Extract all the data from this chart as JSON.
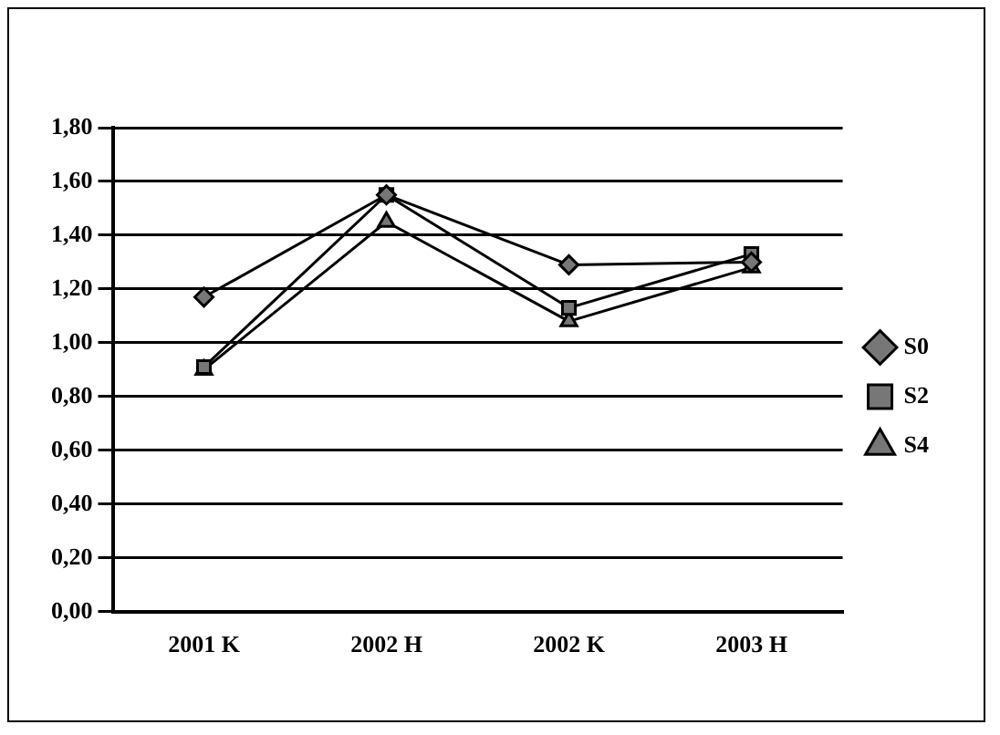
{
  "chart_data": {
    "type": "line",
    "categories": [
      "2001 K",
      "2002 H",
      "2002 K",
      "2003 H"
    ],
    "series": [
      {
        "name": "S0",
        "color": "#000000",
        "marker": "diamond",
        "values": [
          1.17,
          1.55,
          1.29,
          1.3
        ]
      },
      {
        "name": "S2",
        "color": "#000000",
        "marker": "square",
        "values": [
          0.91,
          1.55,
          1.13,
          1.33
        ]
      },
      {
        "name": "S4",
        "color": "#000000",
        "marker": "triangle",
        "values": [
          0.9,
          1.45,
          1.08,
          1.28
        ]
      }
    ],
    "ylim": [
      0,
      1.8
    ],
    "yticks": [
      {
        "value": 0,
        "label": "0,00"
      },
      {
        "value": 0.2,
        "label": "0,20"
      },
      {
        "value": 0.4,
        "label": "0,40"
      },
      {
        "value": 0.6,
        "label": "0,60"
      },
      {
        "value": 0.8,
        "label": "0,80"
      },
      {
        "value": 1,
        "label": "1,00"
      },
      {
        "value": 1.2,
        "label": "1,20"
      },
      {
        "value": 1.4,
        "label": "1,40"
      },
      {
        "value": 1.6,
        "label": "1,60"
      },
      {
        "value": 1.8,
        "label": "1,80"
      }
    ],
    "grid": "y",
    "legend": "right"
  }
}
